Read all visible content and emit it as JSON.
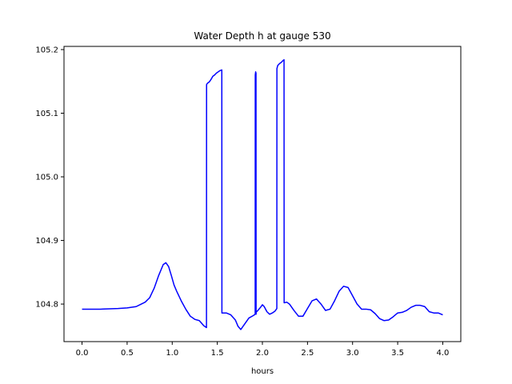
{
  "chart_data": {
    "type": "line",
    "title": "Water Depth h at gauge 530",
    "xlabel": "hours",
    "ylabel": "",
    "xlim": [
      -0.2,
      4.2
    ],
    "ylim": [
      104.741,
      105.205
    ],
    "xticks": [
      0.0,
      0.5,
      1.0,
      1.5,
      2.0,
      2.5,
      3.0,
      3.5,
      4.0
    ],
    "xtick_labels": [
      "0.0",
      "0.5",
      "1.0",
      "1.5",
      "2.0",
      "2.5",
      "3.0",
      "3.5",
      "4.0"
    ],
    "yticks": [
      104.8,
      104.9,
      105.0,
      105.1,
      105.2
    ],
    "ytick_labels": [
      "104.8",
      "104.9",
      "105.0",
      "105.1",
      "105.2"
    ],
    "grid": false,
    "series": [
      {
        "color": "#0000ff",
        "x": [
          0.0,
          0.2,
          0.4,
          0.5,
          0.6,
          0.7,
          0.75,
          0.8,
          0.85,
          0.9,
          0.93,
          0.96,
          0.99,
          1.02,
          1.05,
          1.1,
          1.15,
          1.2,
          1.25,
          1.3,
          1.35,
          1.38,
          1.381,
          1.39,
          1.41,
          1.43,
          1.45,
          1.47,
          1.49,
          1.51,
          1.53,
          1.55,
          1.551,
          1.6,
          1.65,
          1.7,
          1.73,
          1.76,
          1.8,
          1.85,
          1.9,
          1.92,
          1.921,
          1.925,
          1.929,
          1.93,
          1.931,
          1.95,
          1.98,
          2.0,
          2.02,
          2.05,
          2.08,
          2.11,
          2.14,
          2.16,
          2.161,
          2.17,
          2.19,
          2.21,
          2.23,
          2.24,
          2.241,
          2.27,
          2.3,
          2.35,
          2.4,
          2.45,
          2.5,
          2.55,
          2.6,
          2.65,
          2.7,
          2.75,
          2.8,
          2.85,
          2.9,
          2.95,
          3.0,
          3.05,
          3.1,
          3.15,
          3.2,
          3.25,
          3.3,
          3.35,
          3.4,
          3.45,
          3.5,
          3.55,
          3.6,
          3.65,
          3.7,
          3.75,
          3.8,
          3.85,
          3.9,
          3.95,
          4.0
        ],
        "y": [
          104.792,
          104.792,
          104.793,
          104.794,
          104.796,
          104.803,
          104.81,
          104.825,
          104.845,
          104.862,
          104.865,
          104.859,
          104.845,
          104.83,
          104.82,
          104.805,
          104.792,
          104.781,
          104.776,
          104.774,
          104.766,
          104.763,
          105.145,
          105.147,
          105.149,
          105.153,
          105.158,
          105.16,
          105.163,
          105.165,
          105.167,
          105.168,
          104.786,
          104.786,
          104.783,
          104.775,
          104.765,
          104.76,
          104.768,
          104.778,
          104.782,
          104.784,
          105.16,
          105.165,
          105.163,
          104.784,
          104.787,
          104.79,
          104.795,
          104.799,
          104.796,
          104.788,
          104.784,
          104.786,
          104.789,
          104.793,
          105.17,
          105.175,
          105.178,
          105.18,
          105.183,
          105.184,
          104.802,
          104.803,
          104.8,
          104.79,
          104.781,
          104.781,
          104.793,
          104.805,
          104.808,
          104.8,
          104.79,
          104.792,
          104.805,
          104.82,
          104.828,
          104.826,
          104.813,
          104.8,
          104.792,
          104.792,
          104.791,
          104.785,
          104.777,
          104.774,
          104.775,
          104.78,
          104.786,
          104.787,
          104.79,
          104.795,
          104.798,
          104.798,
          104.796,
          104.788,
          104.786,
          104.786,
          104.783
        ]
      }
    ]
  }
}
